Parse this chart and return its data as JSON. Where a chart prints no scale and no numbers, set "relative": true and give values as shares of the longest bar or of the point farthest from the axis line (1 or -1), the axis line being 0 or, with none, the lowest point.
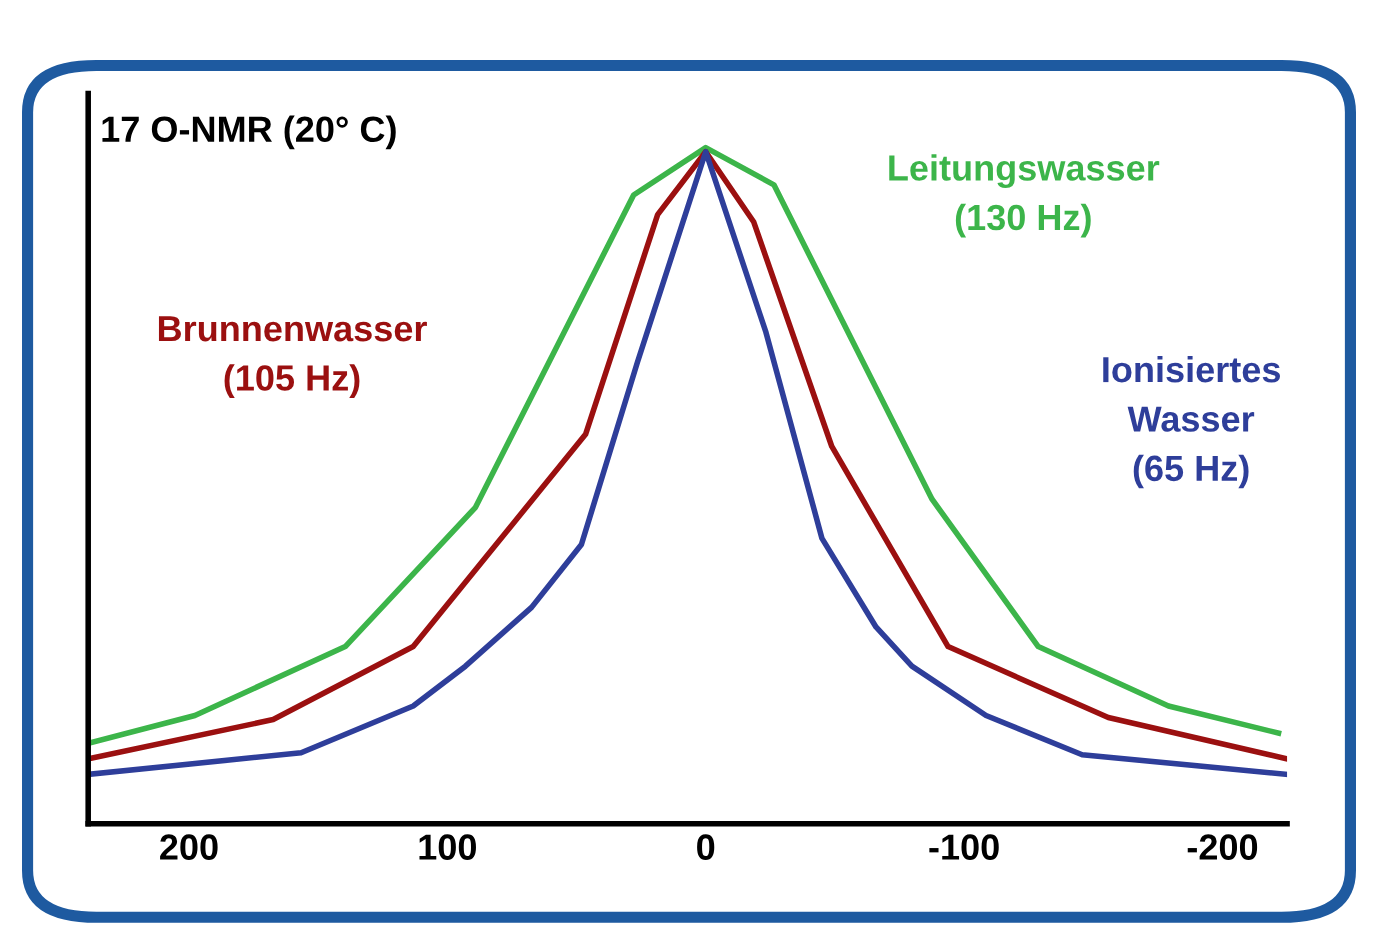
{
  "chart_data": {
    "type": "line",
    "title": "17 O-NMR (20° C)",
    "relative": true,
    "xlim": [
      239,
      -225
    ],
    "xticks": [
      200,
      100,
      0,
      -100,
      -200
    ],
    "tick_labels": "x",
    "grid": false,
    "legend": false,
    "marker": "none",
    "line_style": "solid",
    "series": [
      {
        "name": "Leitungswasser\n(130 Hz)",
        "color": "#3cb54a",
        "x": [
          238.8,
          197.7,
          139.5,
          89.1,
          27.9,
          0,
          -26.4,
          -87.6,
          -128.7,
          -179.1,
          -221.7
        ],
        "values": [
          0.119,
          0.16,
          0.262,
          0.468,
          0.93,
          1,
          0.945,
          0.48,
          0.262,
          0.174,
          0.134
        ]
      },
      {
        "name": "Brunnenwasser\n(105 Hz)",
        "color": "#9b1010",
        "x": [
          238.8,
          167.4,
          113.2,
          46.5,
          18.6,
          0,
          -18.6,
          -48.8,
          -93.8,
          -155.8,
          -224.8
        ],
        "values": [
          0.096,
          0.154,
          0.262,
          0.576,
          0.901,
          0.994,
          0.89,
          0.558,
          0.262,
          0.157,
          0.096
        ]
      },
      {
        "name": "Ionisiertes\nWasser\n(65 Hz)",
        "color": "#2e3e9a",
        "x": [
          238.8,
          156.6,
          113.2,
          93,
          67.4,
          48.1,
          26.4,
          0,
          -23.3,
          -45,
          -65.9,
          -79.8,
          -108.5,
          -145.7,
          -224.8
        ],
        "values": [
          0.073,
          0.105,
          0.174,
          0.233,
          0.32,
          0.413,
          0.683,
          0.994,
          0.727,
          0.422,
          0.291,
          0.233,
          0.16,
          0.102,
          0.073
        ]
      }
    ]
  }
}
